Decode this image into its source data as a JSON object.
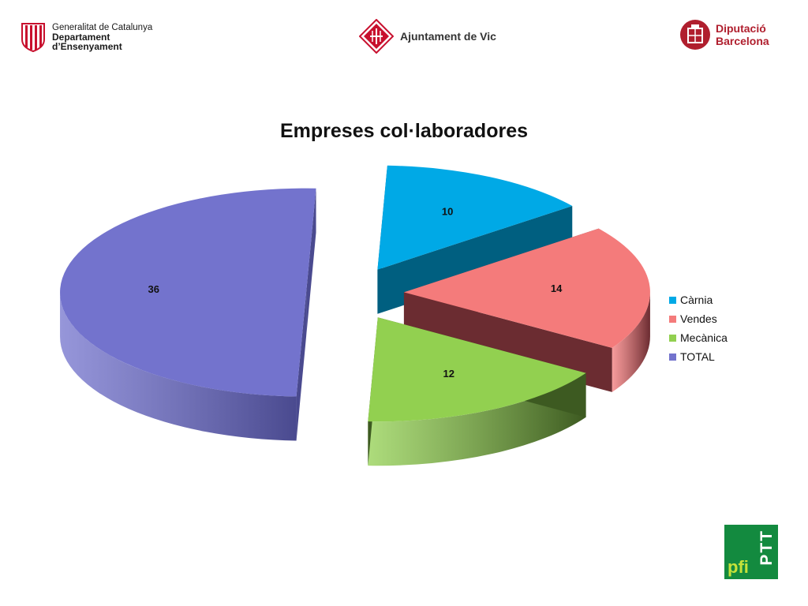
{
  "logos": {
    "gencat": [
      "Generalitat de Catalunya",
      "Departament",
      "d’Ensenyament"
    ],
    "vic": "Ajuntament de Vic",
    "diputacio": [
      "Diputació",
      "Barcelona"
    ],
    "pfi": "pfi",
    "ptt": "PTT"
  },
  "chart_data": {
    "type": "pie",
    "title": "Empreses col·laboradores",
    "categories": [
      "Càrnia",
      "Vendes",
      "Mecànica",
      "TOTAL"
    ],
    "values": [
      10,
      14,
      12,
      36
    ],
    "colors": [
      "#00a9e6",
      "#f47b7b",
      "#92d050",
      "#7373cd"
    ],
    "side_colors": [
      "#005f80",
      "#6b2c31",
      "#3d5a21",
      "#4a4a8f"
    ],
    "three_d": true,
    "exploded": true,
    "data_labels": true,
    "legend": "right"
  }
}
